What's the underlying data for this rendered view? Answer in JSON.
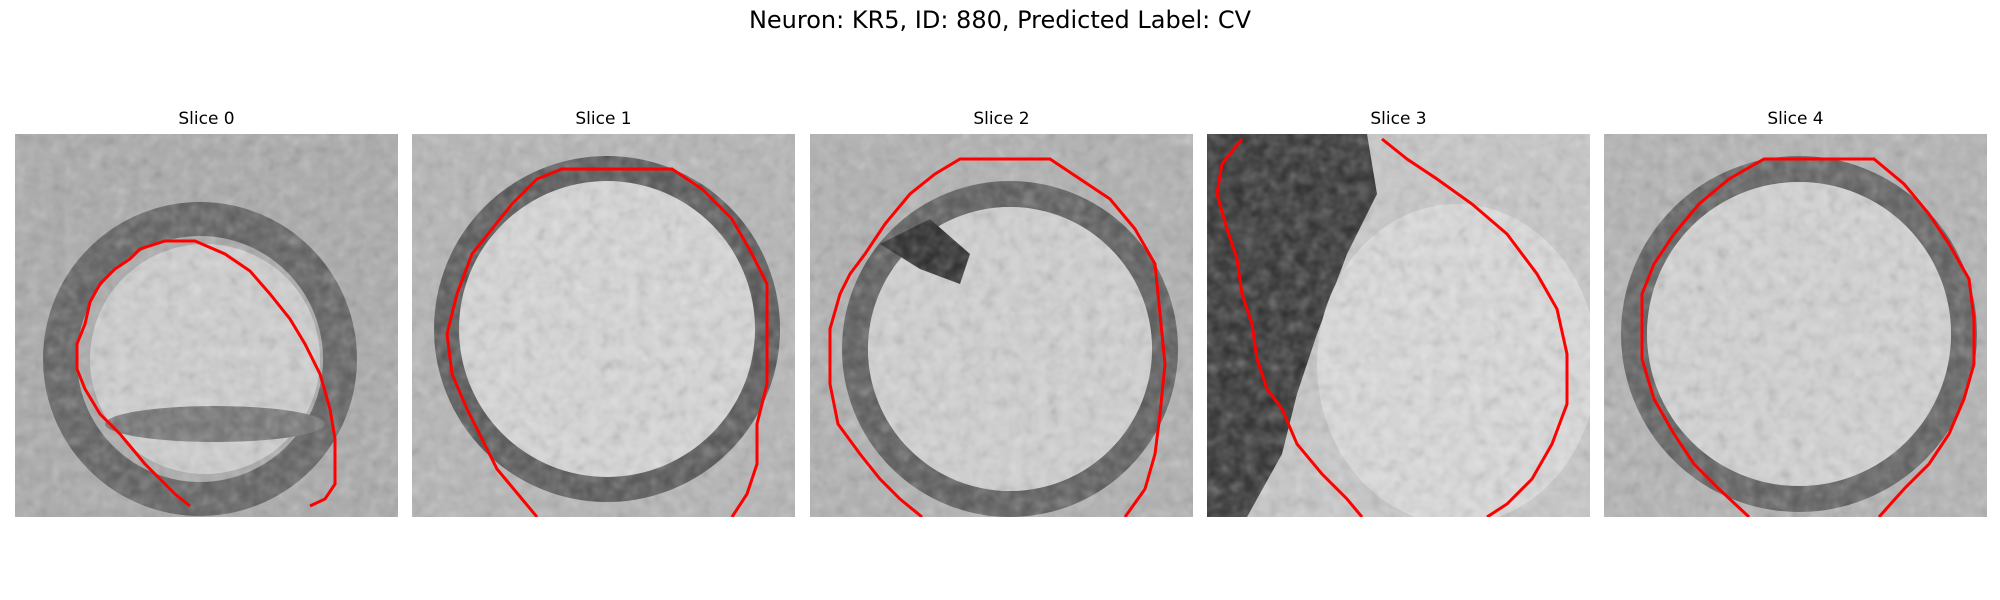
{
  "figure": {
    "title": "Neuron: KR5, ID: 880, Predicted Label: CV"
  },
  "panels": [
    {
      "title": "Slice 0"
    },
    {
      "title": "Slice 1"
    },
    {
      "title": "Slice 2"
    },
    {
      "title": "Slice 3"
    },
    {
      "title": "Slice 4"
    }
  ],
  "colors": {
    "contour": "#ff0000",
    "image_dark": "#000000",
    "image_light": "#ffffff"
  }
}
